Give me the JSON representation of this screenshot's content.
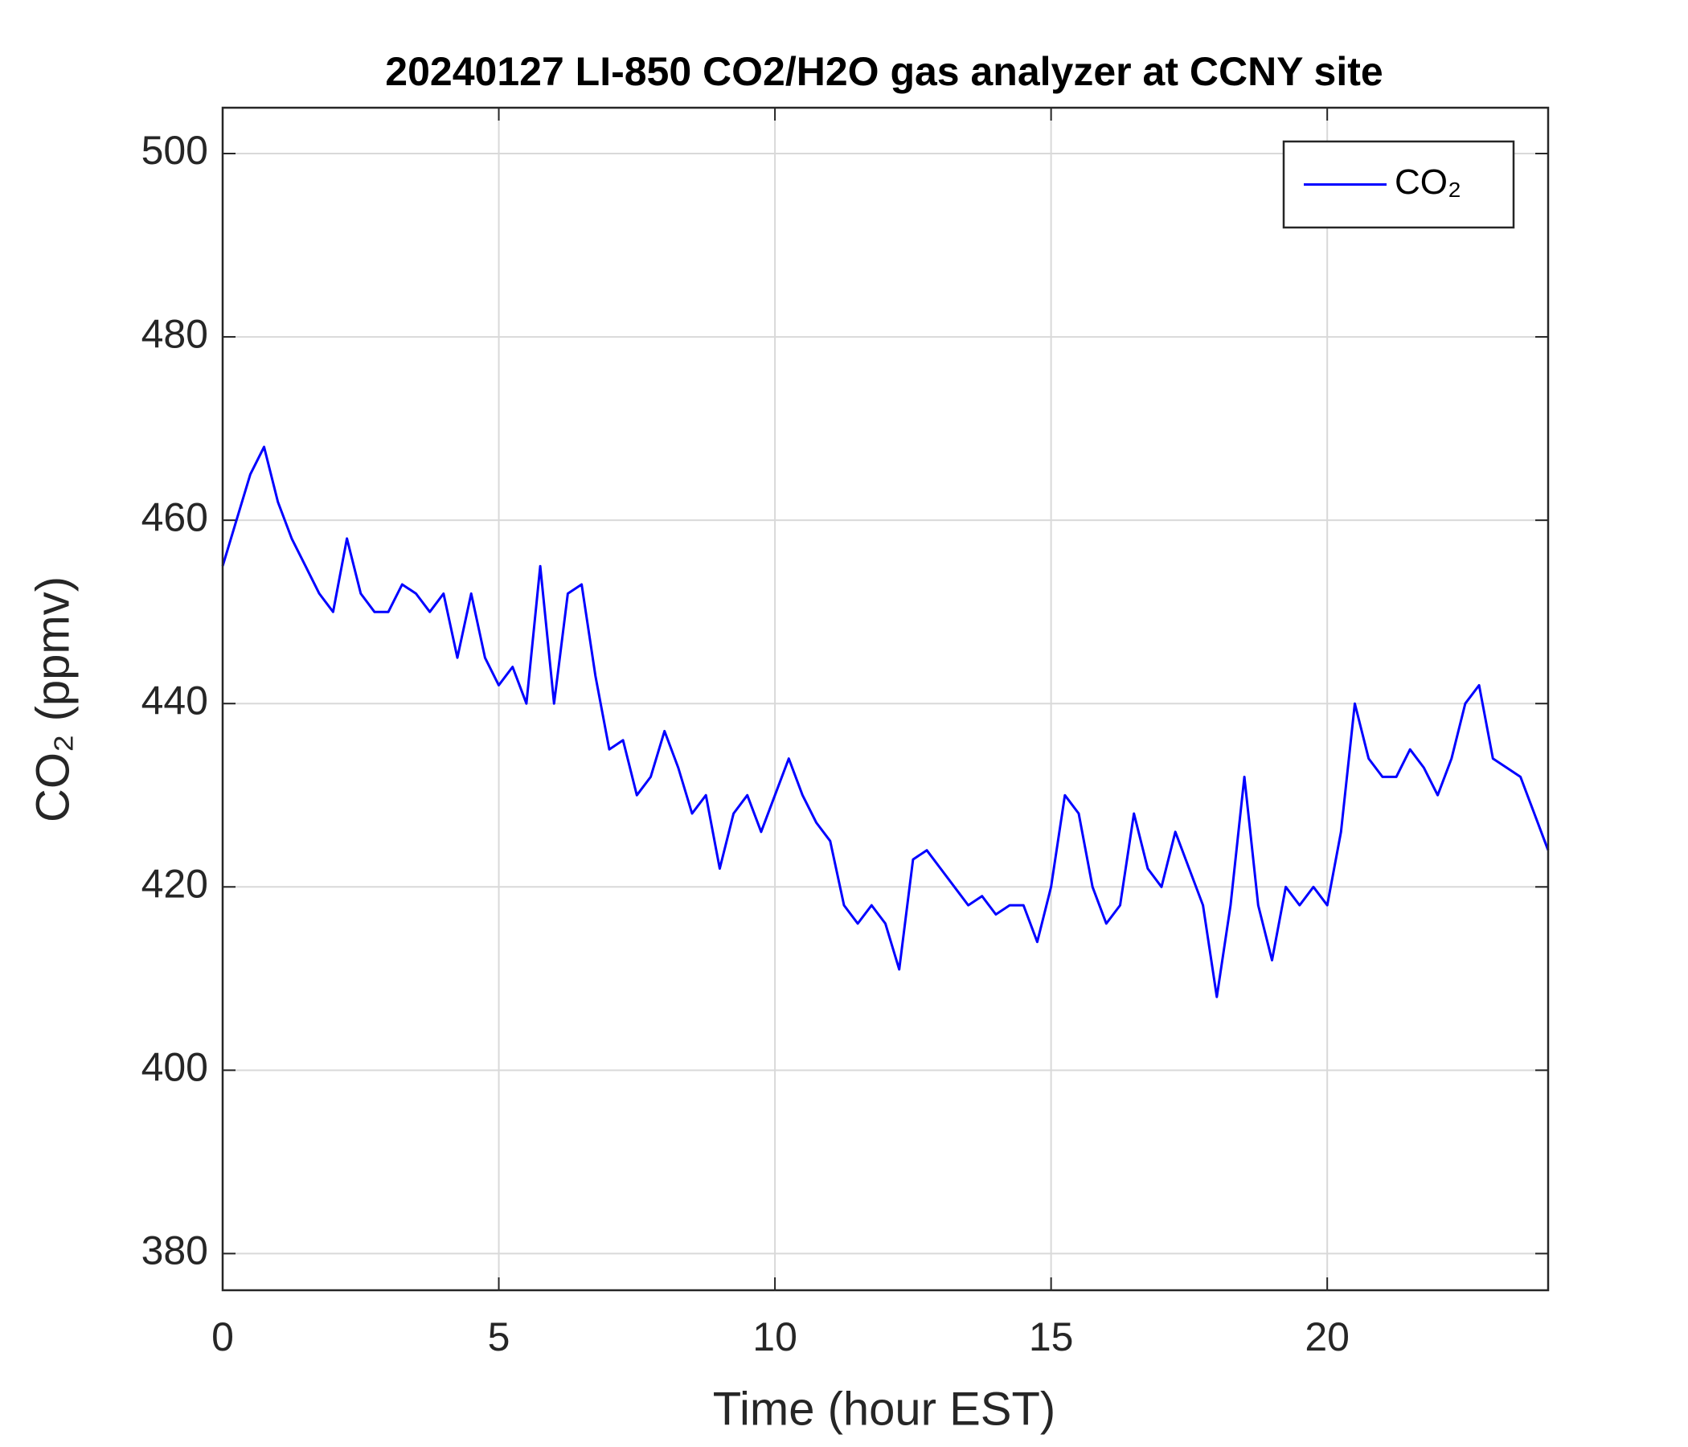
{
  "chart_data": {
    "type": "line",
    "title": "20240127 LI-850 CO2/H2O gas analyzer at CCNY site",
    "xlabel": "Time (hour EST)",
    "ylabel": "CO₂ (ppmv)",
    "x": [
      0,
      0.25,
      0.5,
      0.75,
      1,
      1.25,
      1.5,
      1.75,
      2,
      2.25,
      2.5,
      2.75,
      3,
      3.25,
      3.5,
      3.75,
      4,
      4.25,
      4.5,
      4.75,
      5,
      5.25,
      5.5,
      5.75,
      6,
      6.25,
      6.5,
      6.75,
      7,
      7.25,
      7.5,
      7.75,
      8,
      8.25,
      8.5,
      8.75,
      9,
      9.25,
      9.5,
      9.75,
      10,
      10.25,
      10.5,
      10.75,
      11,
      11.25,
      11.5,
      11.75,
      12,
      12.25,
      12.5,
      12.75,
      13,
      13.25,
      13.5,
      13.75,
      14,
      14.25,
      14.5,
      14.75,
      15,
      15.25,
      15.5,
      15.75,
      16,
      16.25,
      16.5,
      16.75,
      17,
      17.25,
      17.5,
      17.75,
      18,
      18.25,
      18.5,
      18.75,
      19,
      19.25,
      19.5,
      19.75,
      20,
      20.25,
      20.5,
      20.75,
      21,
      21.25,
      21.5,
      21.75,
      22,
      22.25,
      22.5,
      22.75,
      23,
      23.25,
      23.5,
      23.75,
      24
    ],
    "series": [
      {
        "name": "CO₂",
        "color": "#0000ff",
        "values": [
          455,
          460,
          465,
          468,
          462,
          458,
          455,
          452,
          450,
          458,
          452,
          450,
          450,
          453,
          452,
          450,
          452,
          445,
          452,
          445,
          442,
          444,
          440,
          455,
          440,
          452,
          453,
          443,
          435,
          436,
          430,
          432,
          437,
          433,
          428,
          430,
          422,
          428,
          430,
          426,
          430,
          434,
          430,
          427,
          425,
          418,
          416,
          418,
          416,
          411,
          423,
          424,
          422,
          420,
          418,
          419,
          417,
          418,
          418,
          414,
          420,
          430,
          428,
          420,
          416,
          418,
          428,
          422,
          420,
          426,
          422,
          418,
          408,
          418,
          432,
          418,
          412,
          420,
          418,
          420,
          418,
          426,
          440,
          434,
          432,
          432,
          435,
          433,
          430,
          434,
          440,
          442,
          434,
          433,
          432,
          428,
          424
        ]
      }
    ],
    "xlim": [
      0,
      24
    ],
    "ylim": [
      376,
      505
    ],
    "xticks": [
      0,
      5,
      10,
      15,
      20
    ],
    "yticks": [
      380,
      400,
      420,
      440,
      460,
      480,
      500
    ],
    "grid": true,
    "legend": "upper right"
  }
}
